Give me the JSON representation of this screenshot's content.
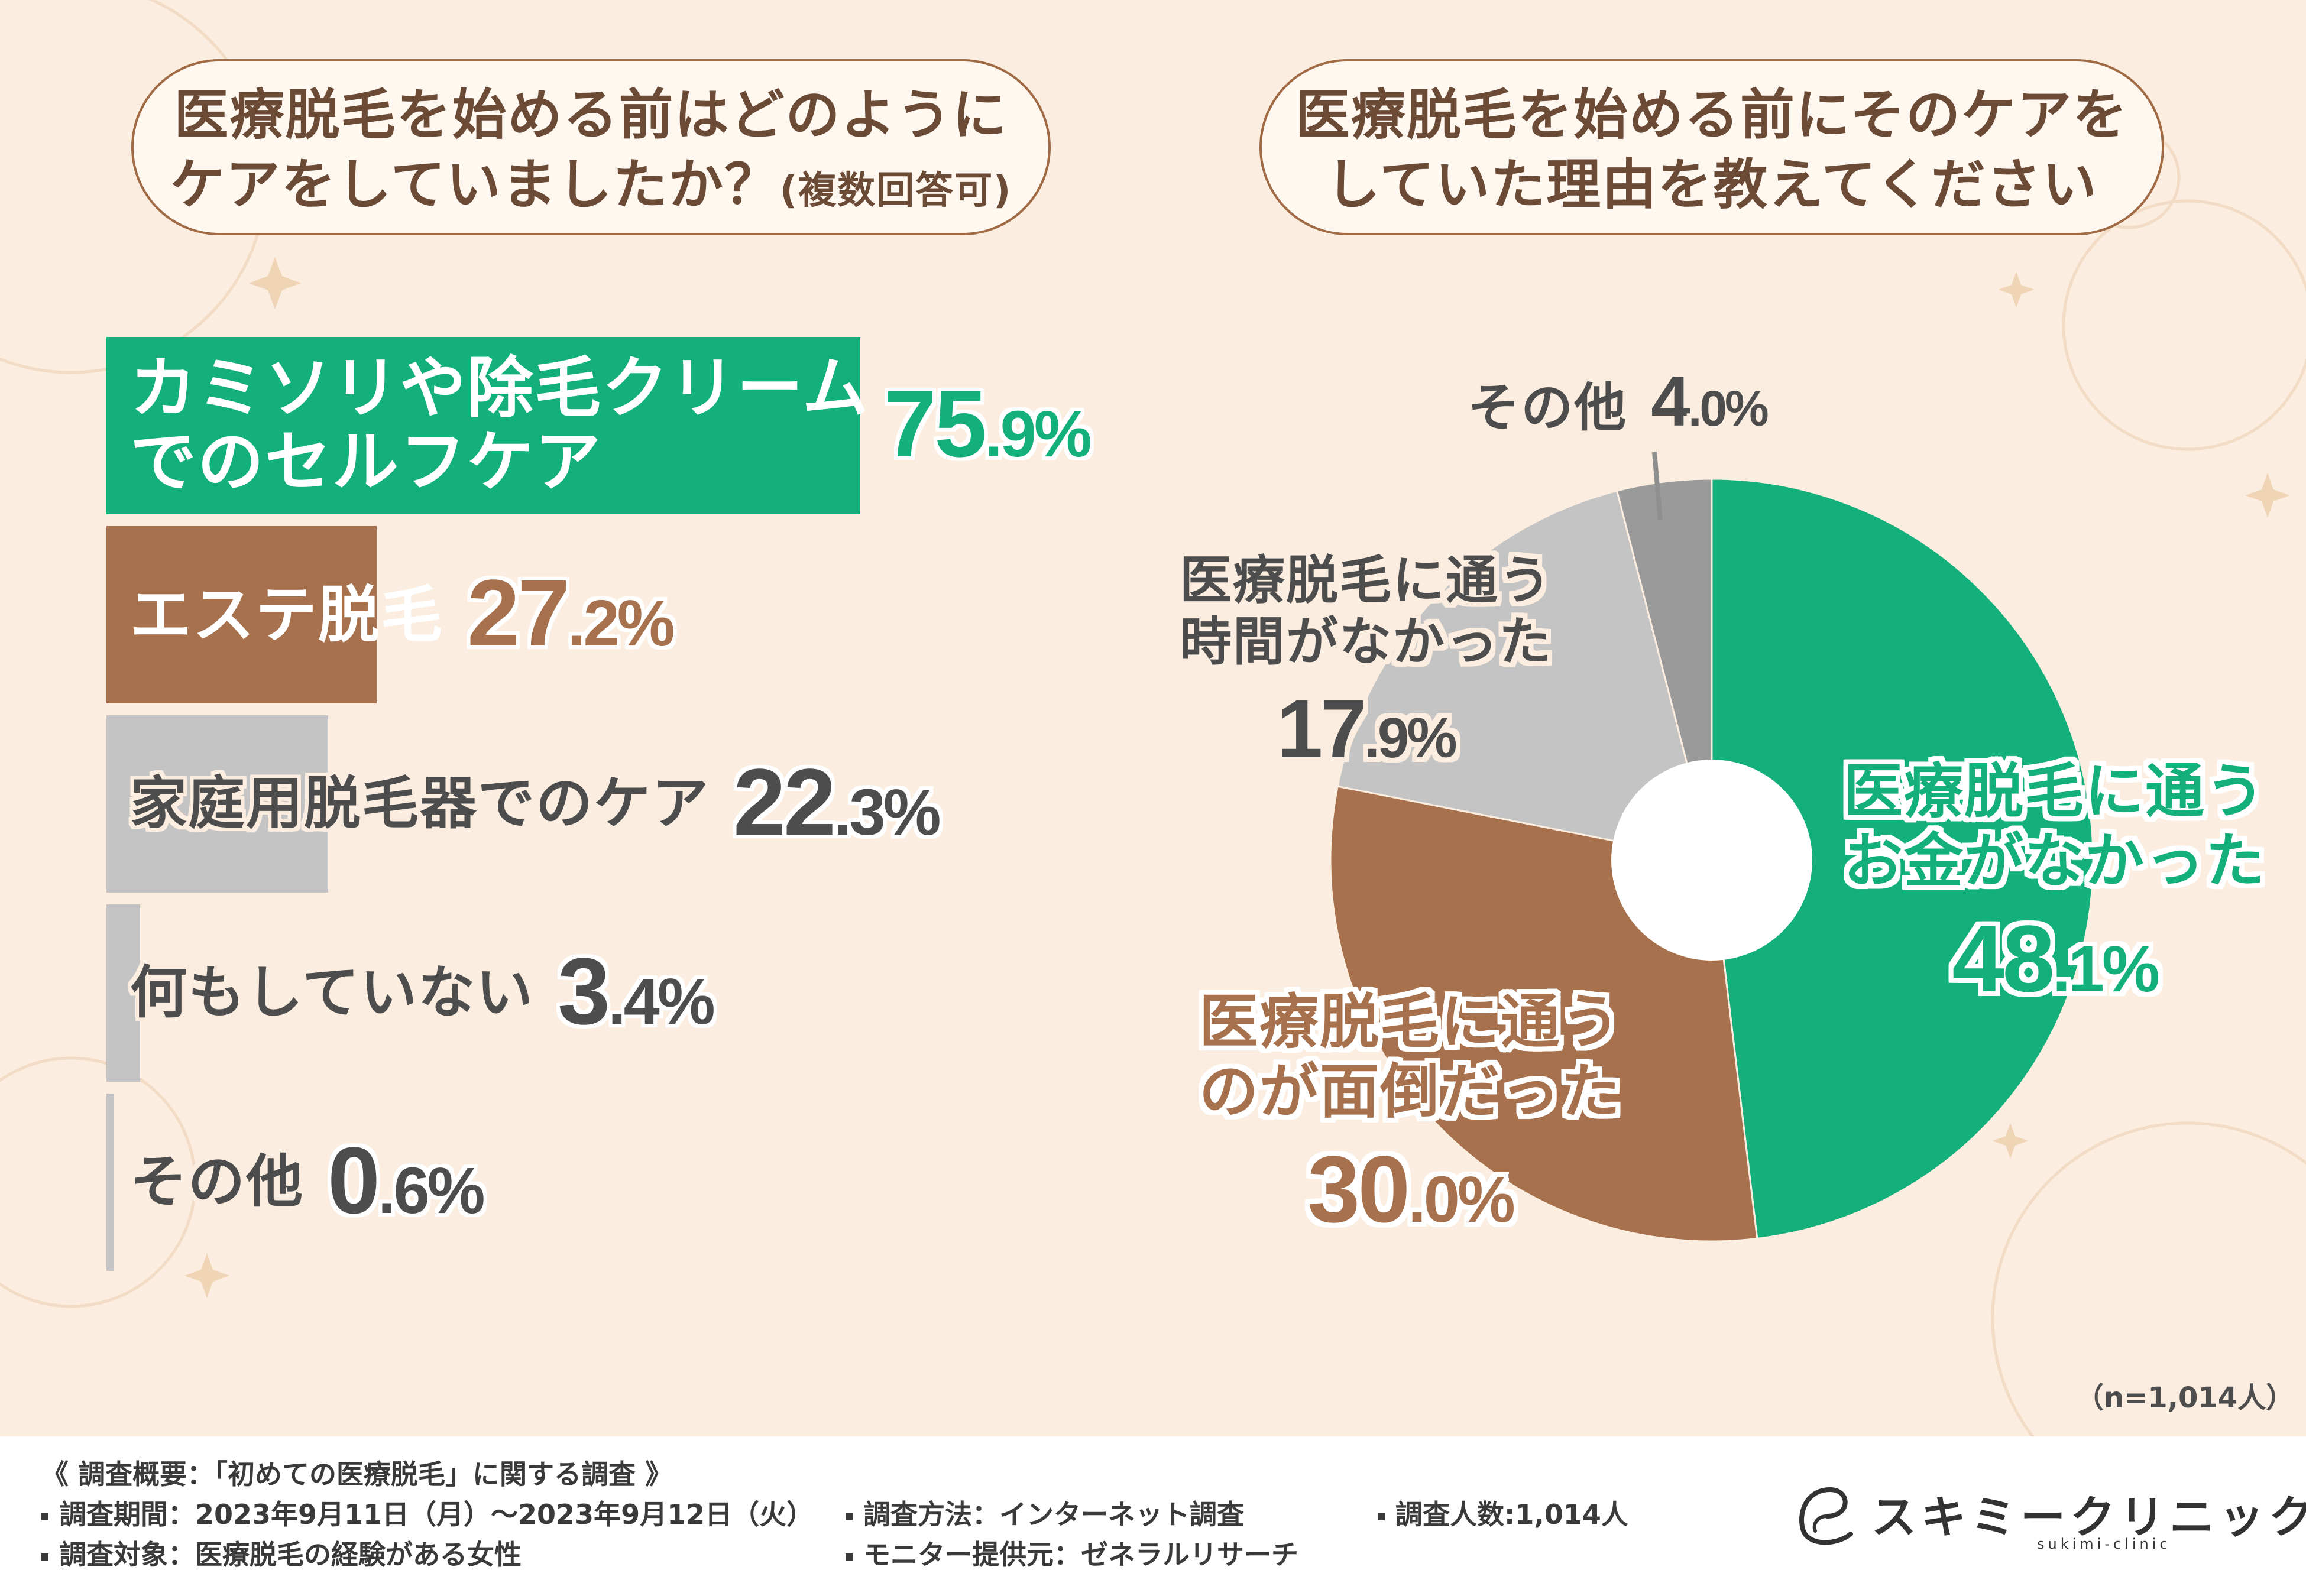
{
  "left_title": {
    "line1": "医療脱毛を始める前はどのように",
    "line2": "ケアをしていましたか？",
    "line2_sub": "(複数回答可)"
  },
  "right_title": {
    "line1": "医療脱毛を始める前にそのケアを",
    "line2": "していた理由を教えてください"
  },
  "colors": {
    "green": "#14b07c",
    "brown": "#a6714c",
    "light_gray": "#c4c4c4",
    "gray": "#8f8f8f",
    "dark_text": "#4d4d4d",
    "background": "#fbeddf"
  },
  "chart_data": [
    {
      "type": "bar",
      "orientation": "horizontal",
      "title": "医療脱毛を始める前はどのようにケアをしていましたか？(複数回答可)",
      "categories": [
        "カミソリや除毛クリームでのセルフケア",
        "エステ脱毛",
        "家庭用脱毛器でのケア",
        "何もしていない",
        "その他"
      ],
      "values": [
        75.9,
        27.2,
        22.3,
        3.4,
        0.6
      ],
      "unit": "%",
      "bars": [
        {
          "label_lines": [
            "カミソリや除毛クリーム",
            "でのセルフケア"
          ],
          "int": "75",
          "dec": ".9%",
          "value": 75.9,
          "color": "#14b07c",
          "label_color": "#ffffff",
          "pct_color": "#14b07c"
        },
        {
          "label_lines": [
            "エステ脱毛"
          ],
          "int": "27",
          "dec": ".2%",
          "value": 27.2,
          "color": "#a6714c",
          "label_color": "#ffffff",
          "pct_color": "#a6714c"
        },
        {
          "label_lines": [
            "家庭用脱毛器でのケア"
          ],
          "int": "22",
          "dec": ".3%",
          "value": 22.3,
          "color": "#c4c4c4",
          "label_color": "#4d4d4d",
          "pct_color": "#4d4d4d"
        },
        {
          "label_lines": [
            "何もしていない"
          ],
          "int": "3",
          "dec": ".4%",
          "value": 3.4,
          "color": "#c4c4c4",
          "label_color": "#4d4d4d",
          "pct_color": "#4d4d4d"
        },
        {
          "label_lines": [
            "その他"
          ],
          "int": "0",
          "dec": ".6%",
          "value": 0.6,
          "color": "#c4c4c4",
          "label_color": "#4d4d4d",
          "pct_color": "#4d4d4d"
        }
      ]
    },
    {
      "type": "pie",
      "donut": true,
      "title": "医療脱毛を始める前にそのケアをしていた理由を教えてください",
      "categories": [
        "医療脱毛に通うお金がなかった",
        "医療脱毛に通うのが面倒だった",
        "医療脱毛に通う時間がなかった",
        "その他"
      ],
      "values": [
        48.1,
        30.0,
        17.9,
        4.0
      ],
      "unit": "%",
      "slices": [
        {
          "label_lines": [
            "医療脱毛に通う",
            "お金がなかった"
          ],
          "int": "48",
          "dec": ".1%",
          "value": 48.1,
          "color": "#14b07c",
          "text_color": "#14b07c",
          "text_outline": "#ffffff"
        },
        {
          "label_lines": [
            "医療脱毛に通う",
            "のが面倒だった"
          ],
          "int": "30",
          "dec": ".0%",
          "value": 30.0,
          "color": "#a6714c",
          "text_color": "#a6714c",
          "text_outline": "#ffffff"
        },
        {
          "label_lines": [
            "医療脱毛に通う",
            "時間がなかった"
          ],
          "int": "17",
          "dec": ".9%",
          "value": 17.9,
          "color": "#c4c4c4",
          "text_color": "#4d4d4d",
          "text_outline": "#fbeddf"
        },
        {
          "label_lines": [
            "その他"
          ],
          "int": "4",
          "dec": ".0%",
          "value": 4.0,
          "color": "#9a9a9a",
          "text_color": "#4d4d4d",
          "text_outline": "#fbeddf"
        }
      ]
    }
  ],
  "sample_size": "（n=1,014人）",
  "footer": {
    "overview": "《 調査概要：「初めての医療脱毛」に関する調査 》",
    "period": "調査期間：2023年9月11日（月）～2023年9月12日（火）",
    "method": "調査方法：インターネット調査",
    "count": "調査人数:1,014人",
    "target": "調査対象：医療脱毛の経験がある女性",
    "provider": "モニター提供元：ゼネラルリサーチ"
  },
  "logo": {
    "name": "スキミークリニック",
    "sub": "sukimi-clinic"
  }
}
